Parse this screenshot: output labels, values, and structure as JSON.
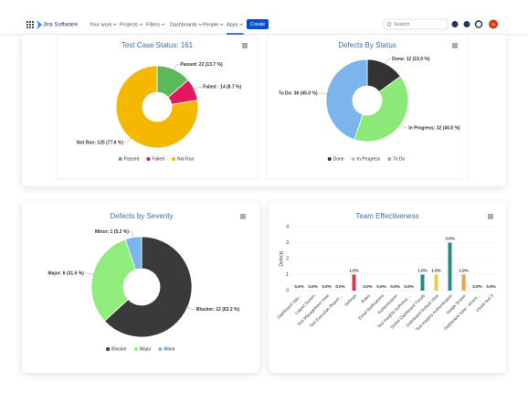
{
  "nav": {
    "logo": "Jira Software",
    "menu": [
      "Your work",
      "Projects",
      "Filters",
      "Dashboards",
      "People",
      "Apps"
    ],
    "create": "Create",
    "search": "Search",
    "avatar": "TA"
  },
  "chart_data": [
    {
      "type": "pie",
      "title": "Test Case Status: 161",
      "categories": [
        "Passed",
        "Failed",
        "Not Run"
      ],
      "values": [
        22,
        14,
        125
      ],
      "value_labels": [
        "Passed: 22 (13.7 %)",
        "Failed : 14 (8.7 %)",
        "Not Run: 125 (77.6 %)"
      ],
      "colors": [
        "#5cb85c",
        "#e0185c",
        "#f5b800"
      ]
    },
    {
      "type": "pie",
      "title": "Defects By Status",
      "categories": [
        "Done",
        "In Progress",
        "To Do"
      ],
      "values": [
        12,
        32,
        36
      ],
      "value_labels": [
        "Done: 12 (15.0 %)",
        "In Progress: 32 (40.0 %)",
        "To Do: 36 (45.0 %)"
      ],
      "colors": [
        "#333333",
        "#8de87a",
        "#7cb5ec"
      ]
    },
    {
      "type": "pie",
      "title": "Defects by Severity",
      "categories": [
        "Blocker",
        "Major",
        "Minor"
      ],
      "values": [
        12,
        6,
        1
      ],
      "value_labels": [
        "Blocker: 12 (63.2 %)",
        "Major: 6 (31.6 %)",
        "Minor: 1 (5.3 %)"
      ],
      "colors": [
        "#3a3a3c",
        "#90ed7d",
        "#7cb5ec"
      ]
    },
    {
      "type": "bar",
      "title": "Team Effectiveness",
      "y_label": "Defects",
      "categories": [
        "Dashboard Valu...",
        "Logout Screen",
        "Test Management View",
        "Test Execution Report ...",
        "Settings",
        "Roles",
        "Email Notifications",
        "Authentication",
        "Test Insights Authorise ...",
        "Global Dashboard Trends",
        "Dashboard Default View",
        "Test Insights Authentication",
        "Usage Screen",
        "Dashboard View - recent...",
        "create test 3"
      ],
      "values": [
        0,
        0,
        0,
        0,
        1,
        0,
        0,
        0,
        0,
        1,
        1,
        3,
        1,
        0,
        0
      ],
      "value_labels": [
        "0.0%",
        "0.0%",
        "0.0%",
        "0.0%",
        "1.0%",
        "0.0%",
        "0.0%",
        "0.0%",
        "0.0%",
        "1.0%",
        "1.0%",
        "3.0%",
        "1.0%",
        "0.0%",
        "0.0%"
      ],
      "colors": [
        "#2a8a8a",
        "#2a8a8a",
        "#2a8a8a",
        "#2a8a8a",
        "#e0364c",
        "#2a8a8a",
        "#2a8a8a",
        "#2a8a8a",
        "#2a8a8a",
        "#2a8a8a",
        "#f0c94a",
        "#2a8a8a",
        "#f0a04a",
        "#8a7ad8",
        "#2a8a8a"
      ],
      "ylim": [
        0,
        4
      ],
      "yticks": [
        0,
        1,
        2,
        3,
        4
      ]
    }
  ]
}
